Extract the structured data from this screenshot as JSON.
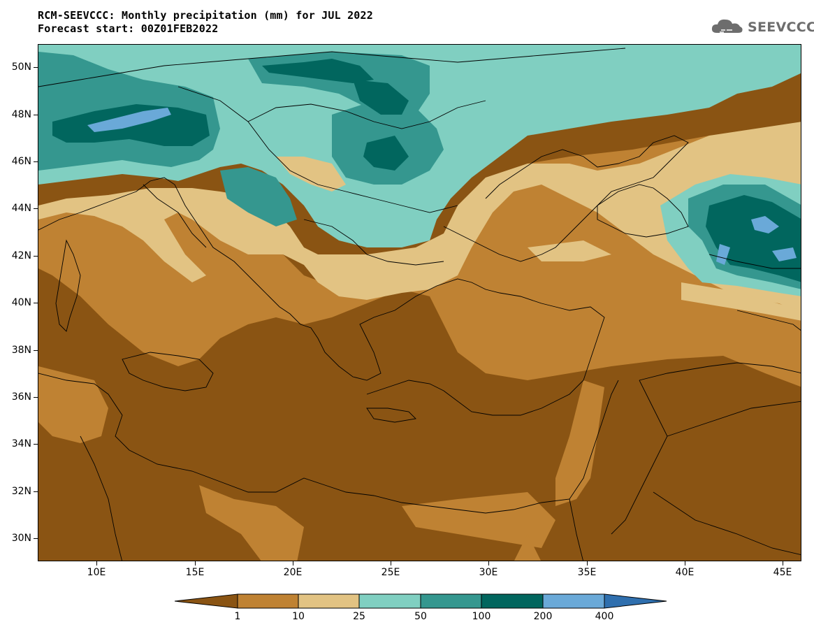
{
  "title": {
    "line1": "RCM-SEEVCCC: Monthly precipitation (mm) for JUL 2022",
    "line2": "Forecast start: 00Z01FEB2022"
  },
  "logo": {
    "text": "SEEVCCC",
    "icon": "cloud-icon"
  },
  "map": {
    "lon_range": [
      7,
      46
    ],
    "lat_range": [
      29,
      51
    ],
    "y_ticks": [
      "50N",
      "48N",
      "46N",
      "44N",
      "42N",
      "40N",
      "38N",
      "36N",
      "34N",
      "32N",
      "30N"
    ],
    "x_ticks": [
      "10E",
      "15E",
      "20E",
      "25E",
      "30E",
      "35E",
      "40E",
      "45E"
    ]
  },
  "colorbar": {
    "labels": [
      "1",
      "10",
      "25",
      "50",
      "100",
      "200",
      "400"
    ],
    "colors": [
      "#8a5413",
      "#bf8233",
      "#e2c383",
      "#80cfc1",
      "#35978f",
      "#01665e",
      "#6aa9d8",
      "#2f6fae"
    ]
  }
}
